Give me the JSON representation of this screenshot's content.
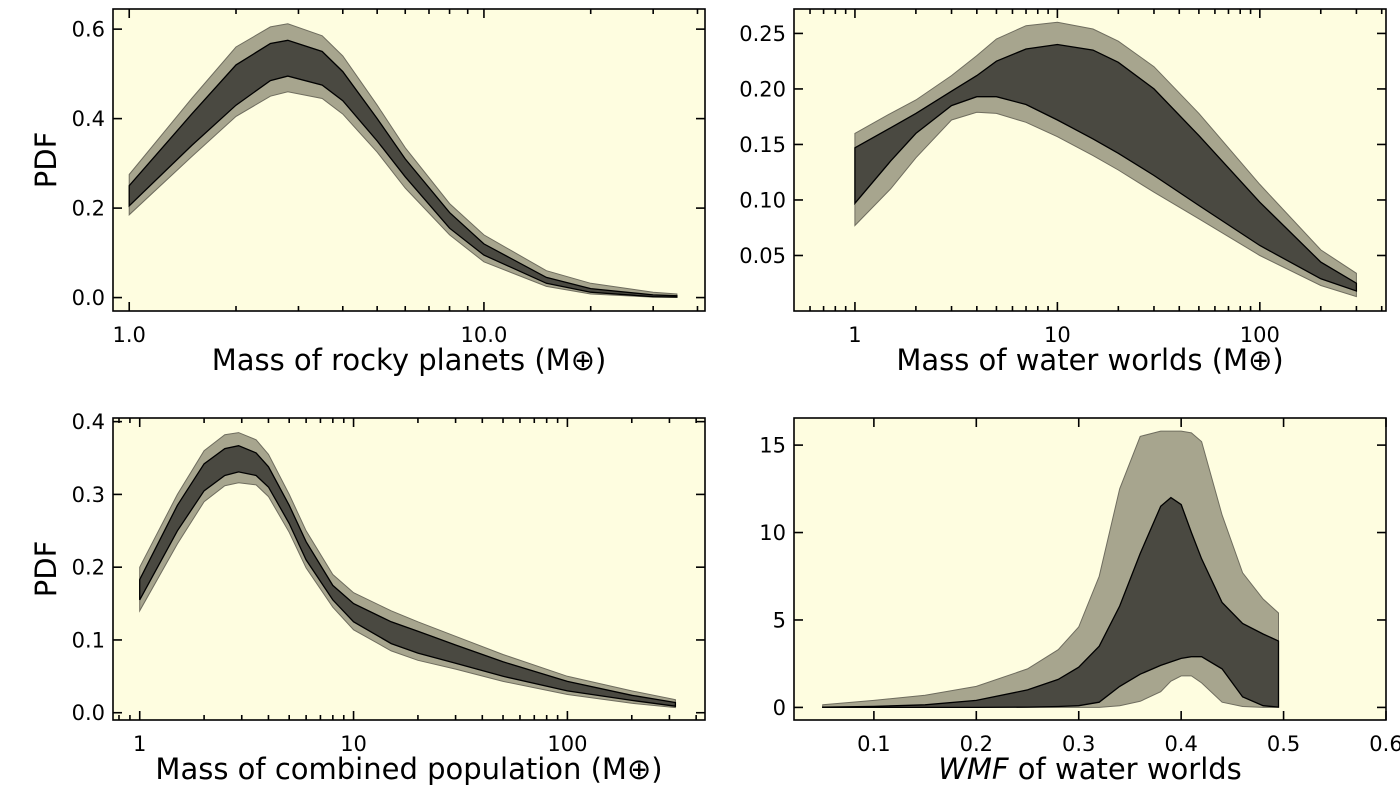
{
  "colors": {
    "background": "#fefde0",
    "outer_band": "#a7a58e",
    "inner_band": "#4a4941",
    "band_edge": "#000000"
  },
  "chart_data": [
    {
      "type": "area",
      "xscale": "log",
      "xlabel": "Mass of rocky planets (M⊕)",
      "ylabel": "PDF",
      "xlim": [
        0.9,
        42
      ],
      "ylim": [
        -0.03,
        0.645
      ],
      "xticks": [
        1,
        10
      ],
      "xtick_labels": [
        "1.0",
        "10.0"
      ],
      "yticks": [
        0,
        0.2,
        0.4,
        0.6
      ],
      "ytick_labels": [
        "0.0",
        "0.2",
        "0.4",
        "0.6"
      ],
      "x": [
        1,
        1.5,
        2,
        2.5,
        2.8,
        3.5,
        4,
        5,
        6,
        8,
        10,
        15,
        20,
        30,
        35
      ],
      "outer_upper": [
        0.275,
        0.445,
        0.56,
        0.605,
        0.612,
        0.585,
        0.54,
        0.43,
        0.335,
        0.21,
        0.14,
        0.06,
        0.032,
        0.012,
        0.008
      ],
      "inner_upper": [
        0.25,
        0.41,
        0.52,
        0.568,
        0.575,
        0.55,
        0.505,
        0.4,
        0.31,
        0.19,
        0.12,
        0.045,
        0.02,
        0.006,
        0.004
      ],
      "inner_lower": [
        0.205,
        0.34,
        0.43,
        0.485,
        0.495,
        0.475,
        0.44,
        0.35,
        0.27,
        0.155,
        0.095,
        0.032,
        0.012,
        0.002,
        0.001
      ],
      "outer_lower": [
        0.185,
        0.315,
        0.405,
        0.45,
        0.46,
        0.445,
        0.41,
        0.325,
        0.245,
        0.14,
        0.08,
        0.025,
        0.008,
        0.001,
        0.0005
      ]
    },
    {
      "type": "area",
      "xscale": "log",
      "xlabel": "Mass of water worlds (M⊕)",
      "ylabel": "",
      "xlim": [
        0.5,
        420
      ],
      "ylim": [
        0.0,
        0.272
      ],
      "xticks": [
        1,
        10,
        100
      ],
      "xtick_labels": [
        "1",
        "10",
        "100"
      ],
      "yticks": [
        0.05,
        0.1,
        0.15,
        0.2,
        0.25
      ],
      "ytick_labels": [
        "0.05",
        "0.10",
        "0.15",
        "0.20",
        "0.25"
      ],
      "x": [
        1,
        1.5,
        2,
        3,
        4,
        5,
        7,
        10,
        15,
        20,
        30,
        50,
        100,
        200,
        300
      ],
      "outer_upper": [
        0.16,
        0.178,
        0.19,
        0.212,
        0.23,
        0.245,
        0.257,
        0.26,
        0.254,
        0.243,
        0.22,
        0.178,
        0.114,
        0.055,
        0.034
      ],
      "inner_upper": [
        0.147,
        0.165,
        0.178,
        0.198,
        0.212,
        0.225,
        0.236,
        0.24,
        0.235,
        0.224,
        0.2,
        0.158,
        0.098,
        0.044,
        0.025
      ],
      "inner_lower": [
        0.097,
        0.135,
        0.16,
        0.185,
        0.193,
        0.193,
        0.186,
        0.172,
        0.155,
        0.142,
        0.122,
        0.095,
        0.059,
        0.029,
        0.018
      ],
      "outer_lower": [
        0.077,
        0.11,
        0.138,
        0.172,
        0.179,
        0.178,
        0.17,
        0.157,
        0.14,
        0.127,
        0.107,
        0.083,
        0.05,
        0.023,
        0.013
      ]
    },
    {
      "type": "area",
      "xscale": "log",
      "xlabel": "Mass of combined population (M⊕)",
      "ylabel": "PDF",
      "xlim": [
        0.75,
        440
      ],
      "ylim": [
        -0.01,
        0.405
      ],
      "xticks": [
        1,
        10,
        100
      ],
      "xtick_labels": [
        "1",
        "10",
        "100"
      ],
      "yticks": [
        0,
        0.1,
        0.2,
        0.3,
        0.4
      ],
      "ytick_labels": [
        "0.0",
        "0.1",
        "0.2",
        "0.3",
        "0.4"
      ],
      "x": [
        1,
        1.5,
        2,
        2.5,
        2.9,
        3.5,
        4,
        5,
        6,
        8,
        10,
        15,
        20,
        30,
        50,
        100,
        200,
        320
      ],
      "outer_upper": [
        0.2,
        0.3,
        0.36,
        0.382,
        0.385,
        0.375,
        0.355,
        0.3,
        0.25,
        0.19,
        0.165,
        0.14,
        0.125,
        0.105,
        0.08,
        0.05,
        0.03,
        0.018
      ],
      "inner_upper": [
        0.183,
        0.285,
        0.342,
        0.363,
        0.367,
        0.357,
        0.338,
        0.285,
        0.235,
        0.175,
        0.15,
        0.125,
        0.112,
        0.093,
        0.07,
        0.043,
        0.024,
        0.014
      ],
      "inner_lower": [
        0.155,
        0.25,
        0.305,
        0.326,
        0.331,
        0.326,
        0.31,
        0.26,
        0.21,
        0.155,
        0.125,
        0.095,
        0.082,
        0.068,
        0.05,
        0.03,
        0.017,
        0.009
      ],
      "outer_lower": [
        0.14,
        0.232,
        0.29,
        0.312,
        0.316,
        0.313,
        0.297,
        0.248,
        0.199,
        0.145,
        0.114,
        0.085,
        0.072,
        0.06,
        0.043,
        0.025,
        0.013,
        0.007
      ]
    },
    {
      "type": "area",
      "xscale": "linear",
      "xlabel": "WMF of water worlds",
      "xlabel_emph": "WMF",
      "xlabel_rest": " of water worlds",
      "ylabel": "",
      "xlim": [
        0.022,
        0.6
      ],
      "ylim": [
        -0.72,
        16.55
      ],
      "xticks": [
        0.1,
        0.2,
        0.3,
        0.4,
        0.5,
        0.6
      ],
      "xtick_labels": [
        "0.1",
        "0.2",
        "0.3",
        "0.4",
        "0.5",
        "0.6"
      ],
      "yticks": [
        0,
        5,
        10,
        15
      ],
      "ytick_labels": [
        "0",
        "5",
        "10",
        "15"
      ],
      "x": [
        0.05,
        0.1,
        0.15,
        0.2,
        0.25,
        0.28,
        0.3,
        0.32,
        0.34,
        0.36,
        0.38,
        0.39,
        0.4,
        0.41,
        0.42,
        0.44,
        0.46,
        0.48,
        0.495
      ],
      "outer_upper": [
        0.15,
        0.4,
        0.7,
        1.2,
        2.2,
        3.3,
        4.6,
        7.5,
        12.5,
        15.5,
        15.8,
        15.8,
        15.8,
        15.7,
        15.2,
        11.0,
        7.7,
        6.2,
        5.4
      ],
      "inner_upper": [
        0.02,
        0.06,
        0.15,
        0.4,
        1.0,
        1.6,
        2.3,
        3.5,
        5.8,
        8.8,
        11.5,
        12.0,
        11.6,
        10.0,
        8.5,
        6.0,
        4.8,
        4.2,
        3.8
      ],
      "inner_lower": [
        0.0,
        0.0,
        0.0,
        0.0,
        0.02,
        0.05,
        0.1,
        0.3,
        1.2,
        1.9,
        2.4,
        2.6,
        2.8,
        2.9,
        2.9,
        2.2,
        0.6,
        0.1,
        0.02
      ],
      "outer_lower": [
        0.0,
        0.0,
        0.0,
        0.0,
        0.0,
        0.0,
        0.0,
        0.0,
        0.1,
        0.35,
        0.9,
        1.5,
        1.8,
        1.8,
        1.4,
        0.3,
        0.05,
        0.0,
        0.0
      ]
    }
  ]
}
